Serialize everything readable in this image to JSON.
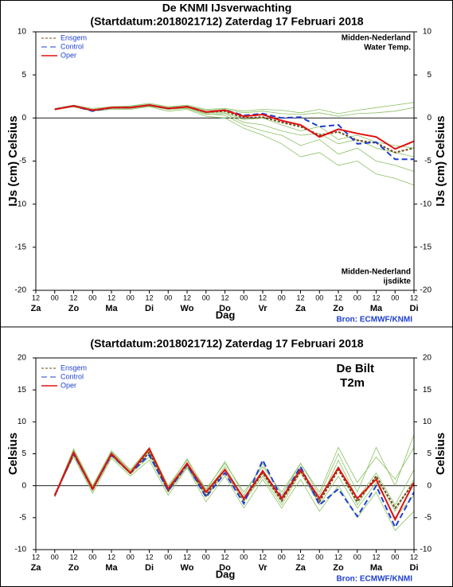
{
  "chart_data": [
    {
      "type": "line",
      "title": "De KNMI IJsverwachting",
      "subtitle": "(Startdatum:2018021712)  Zaterdag 17 Februari 2018",
      "annotations": [
        "Midden-Nederland",
        "Water Temp.",
        "Midden-Nederland",
        "ijsdikte"
      ],
      "ylabel": "IJs (cm)  Celsius",
      "xlabel": "Dag",
      "source": "Bron: ECMWF/KNMI",
      "xlim": [
        0,
        240
      ],
      "ylim": [
        -20,
        10
      ],
      "yticks": [
        -20,
        -15,
        -10,
        -5,
        0,
        5,
        10
      ],
      "xticks": [
        {
          "value": 0,
          "label": "12"
        },
        {
          "value": 12,
          "label": "00"
        },
        {
          "value": 24,
          "label": "12"
        },
        {
          "value": 36,
          "label": "00"
        },
        {
          "value": 48,
          "label": "12"
        },
        {
          "value": 60,
          "label": "00"
        },
        {
          "value": 72,
          "label": "12"
        },
        {
          "value": 84,
          "label": "00"
        },
        {
          "value": 96,
          "label": "12"
        },
        {
          "value": 108,
          "label": "00"
        },
        {
          "value": 120,
          "label": "12"
        },
        {
          "value": 132,
          "label": "00"
        },
        {
          "value": 144,
          "label": "12"
        },
        {
          "value": 156,
          "label": "00"
        },
        {
          "value": 168,
          "label": "12"
        },
        {
          "value": 180,
          "label": "00"
        },
        {
          "value": 192,
          "label": "12"
        },
        {
          "value": 204,
          "label": "00"
        },
        {
          "value": 216,
          "label": "12"
        },
        {
          "value": 228,
          "label": "00"
        },
        {
          "value": 240,
          "label": "12"
        }
      ],
      "day_labels": [
        {
          "value": 0,
          "label": "Za"
        },
        {
          "value": 24,
          "label": "Zo"
        },
        {
          "value": 48,
          "label": "Ma"
        },
        {
          "value": 72,
          "label": "Di"
        },
        {
          "value": 96,
          "label": "Wo"
        },
        {
          "value": 120,
          "label": "Do"
        },
        {
          "value": 144,
          "label": "Vr"
        },
        {
          "value": 168,
          "label": "Za"
        },
        {
          "value": 192,
          "label": "Zo"
        },
        {
          "value": 216,
          "label": "Ma"
        },
        {
          "value": 240,
          "label": "Di"
        }
      ],
      "x": [
        12,
        24,
        36,
        48,
        60,
        72,
        84,
        96,
        108,
        120,
        132,
        144,
        156,
        168,
        180,
        192,
        204,
        216,
        228,
        240
      ],
      "member_color": "#8cc063",
      "members": [
        [
          1.0,
          1.4,
          1.0,
          1.2,
          1.3,
          1.6,
          1.2,
          1.4,
          0.9,
          1.0,
          0.6,
          0.8,
          0.5,
          0.4,
          0.6,
          0.2,
          0.5,
          0.6,
          0.8,
          1.2
        ],
        [
          1.0,
          1.3,
          0.8,
          1.1,
          1.1,
          1.4,
          1.0,
          1.1,
          0.4,
          0.5,
          -0.5,
          -0.8,
          -1.5,
          -2.0,
          -1.8,
          -3.0,
          -2.5,
          -3.5,
          -4.0,
          -4.5
        ],
        [
          1.1,
          1.5,
          1.1,
          1.3,
          1.4,
          1.7,
          1.3,
          1.5,
          1.0,
          1.1,
          0.8,
          1.0,
          0.9,
          0.6,
          1.0,
          0.5,
          0.9,
          1.2,
          1.5,
          1.8
        ],
        [
          1.0,
          1.3,
          0.8,
          1.0,
          1.0,
          1.3,
          0.8,
          1.0,
          0.2,
          0.0,
          -1.2,
          -2.0,
          -3.0,
          -4.5,
          -4.0,
          -5.5,
          -5.0,
          -6.5,
          -7.0,
          -7.8
        ],
        [
          1.0,
          1.4,
          0.9,
          1.2,
          1.2,
          1.5,
          1.1,
          1.2,
          0.6,
          0.6,
          -0.2,
          0.0,
          -0.8,
          -1.5,
          -1.0,
          -2.5,
          -2.0,
          -2.8,
          -3.2,
          -3.5
        ],
        [
          1.0,
          1.3,
          0.9,
          1.1,
          1.2,
          1.4,
          1.0,
          1.2,
          0.5,
          0.3,
          -0.8,
          -1.5,
          -2.0,
          -3.2,
          -2.5,
          -4.2,
          -3.5,
          -5.0,
          -5.5,
          -6.2
        ]
      ],
      "series": [
        {
          "name": "Ensgem",
          "color": "#6b4a1a",
          "dash": "3,2",
          "values": [
            1.0,
            1.4,
            0.9,
            1.2,
            1.2,
            1.5,
            1.1,
            1.3,
            0.7,
            0.8,
            0.0,
            0.1,
            -0.5,
            -1.0,
            -2.0,
            -1.6,
            -2.6,
            -2.9,
            -4.0,
            -3.5
          ]
        },
        {
          "name": "Control",
          "color": "#1f3fd0",
          "dash": "7,4",
          "values": [
            1.0,
            1.4,
            0.8,
            1.2,
            1.2,
            1.5,
            1.1,
            1.3,
            0.7,
            0.9,
            0.3,
            0.5,
            0.0,
            0.1,
            -1.0,
            -0.8,
            -3.0,
            -2.8,
            -4.8,
            -4.8
          ]
        },
        {
          "name": "Oper",
          "color": "#e01010",
          "dash": "none",
          "values": [
            1.0,
            1.4,
            0.9,
            1.2,
            1.2,
            1.5,
            1.1,
            1.3,
            0.7,
            0.9,
            0.2,
            0.4,
            -0.3,
            -0.8,
            -2.2,
            -1.3,
            -1.8,
            -2.2,
            -3.6,
            -2.7
          ]
        }
      ]
    },
    {
      "type": "line",
      "subtitle": "(Startdatum:2018021712)  Zaterdag 17 Februari 2018",
      "annotations": [
        "De Bilt",
        "T2m"
      ],
      "ylabel": "Celsius",
      "xlabel": "Dag",
      "source": "Bron: ECMWF/KNMI",
      "xlim": [
        0,
        240
      ],
      "ylim": [
        -10,
        20
      ],
      "yticks": [
        -10,
        -5,
        0,
        5,
        10,
        15,
        20
      ],
      "xticks": [
        {
          "value": 0,
          "label": "12"
        },
        {
          "value": 12,
          "label": "00"
        },
        {
          "value": 24,
          "label": "12"
        },
        {
          "value": 36,
          "label": "00"
        },
        {
          "value": 48,
          "label": "12"
        },
        {
          "value": 60,
          "label": "00"
        },
        {
          "value": 72,
          "label": "12"
        },
        {
          "value": 84,
          "label": "00"
        },
        {
          "value": 96,
          "label": "12"
        },
        {
          "value": 108,
          "label": "00"
        },
        {
          "value": 120,
          "label": "12"
        },
        {
          "value": 132,
          "label": "00"
        },
        {
          "value": 144,
          "label": "12"
        },
        {
          "value": 156,
          "label": "00"
        },
        {
          "value": 168,
          "label": "12"
        },
        {
          "value": 180,
          "label": "00"
        },
        {
          "value": 192,
          "label": "12"
        },
        {
          "value": 204,
          "label": "00"
        },
        {
          "value": 216,
          "label": "12"
        },
        {
          "value": 228,
          "label": "00"
        },
        {
          "value": 240,
          "label": "12"
        }
      ],
      "day_labels": [
        {
          "value": 0,
          "label": "Za"
        },
        {
          "value": 24,
          "label": "Zo"
        },
        {
          "value": 48,
          "label": "Ma"
        },
        {
          "value": 72,
          "label": "Di"
        },
        {
          "value": 96,
          "label": "Wo"
        },
        {
          "value": 120,
          "label": "Do"
        },
        {
          "value": 144,
          "label": "Vr"
        },
        {
          "value": 168,
          "label": "Za"
        },
        {
          "value": 192,
          "label": "Zo"
        },
        {
          "value": 216,
          "label": "Ma"
        },
        {
          "value": 240,
          "label": "Di"
        }
      ],
      "x": [
        12,
        24,
        36,
        48,
        60,
        72,
        84,
        96,
        108,
        120,
        132,
        144,
        156,
        168,
        180,
        192,
        204,
        216,
        228,
        240
      ],
      "member_color": "#8cc063",
      "members": [
        [
          -1.5,
          5.8,
          0.0,
          5.5,
          2.5,
          6.0,
          0.0,
          4.0,
          -0.5,
          3.5,
          -1.0,
          3.0,
          -1.0,
          3.5,
          -1.5,
          5.0,
          -1.0,
          6.0,
          0.0,
          8.0
        ],
        [
          -1.5,
          4.5,
          -1.2,
          4.3,
          1.5,
          4.0,
          -1.5,
          2.8,
          -2.5,
          1.5,
          -3.5,
          1.0,
          -3.5,
          1.0,
          -4.0,
          0.0,
          -5.0,
          -1.0,
          -7.0,
          -4.0
        ],
        [
          -1.8,
          5.2,
          -0.3,
          5.2,
          2.0,
          5.5,
          -0.5,
          3.5,
          -1.0,
          3.0,
          -2.0,
          2.5,
          -2.0,
          3.0,
          -2.5,
          4.0,
          -2.0,
          2.0,
          -3.0,
          2.5
        ],
        [
          -1.6,
          4.8,
          -0.8,
          4.6,
          1.8,
          4.5,
          -1.0,
          3.0,
          -1.8,
          2.0,
          -2.5,
          1.5,
          -3.0,
          2.0,
          -3.0,
          1.5,
          -3.5,
          0.5,
          -5.0,
          -1.5
        ],
        [
          -1.5,
          5.5,
          -0.2,
          5.3,
          2.3,
          5.8,
          -0.3,
          4.2,
          -0.8,
          3.8,
          -1.5,
          3.5,
          -1.5,
          3.5,
          -1.0,
          6.0,
          0.5,
          4.5,
          1.0,
          6.0
        ],
        [
          -1.7,
          5.0,
          -0.6,
          4.9,
          2.0,
          5.2,
          -0.8,
          3.3,
          -1.5,
          2.5,
          -2.2,
          2.0,
          -2.5,
          2.5,
          -2.0,
          3.0,
          -3.0,
          1.5,
          -4.0,
          1.0
        ]
      ],
      "series": [
        {
          "name": "Ensgem",
          "color": "#6b4a1a",
          "dash": "3,2",
          "values": [
            -1.6,
            5.0,
            -0.6,
            4.9,
            2.0,
            5.2,
            -0.8,
            3.3,
            -1.5,
            2.5,
            -2.2,
            2.0,
            -2.4,
            2.3,
            -2.5,
            2.5,
            -2.5,
            1.5,
            -3.5,
            0.5
          ]
        },
        {
          "name": "Control",
          "color": "#1f3fd0",
          "dash": "7,4",
          "values": [
            -1.5,
            5.0,
            -0.5,
            4.8,
            2.0,
            4.8,
            -0.8,
            3.3,
            -1.8,
            2.0,
            -2.8,
            4.0,
            -2.0,
            3.0,
            -3.0,
            -0.5,
            -4.8,
            0.0,
            -6.5,
            -1.0
          ]
        },
        {
          "name": "Oper",
          "color": "#e01010",
          "dash": "none",
          "values": [
            -1.5,
            5.2,
            -0.5,
            5.0,
            2.0,
            5.8,
            -0.5,
            3.5,
            -1.0,
            2.5,
            -2.0,
            2.3,
            -2.0,
            2.5,
            -2.0,
            2.8,
            -2.0,
            1.0,
            -5.3,
            0.5
          ]
        }
      ]
    }
  ]
}
